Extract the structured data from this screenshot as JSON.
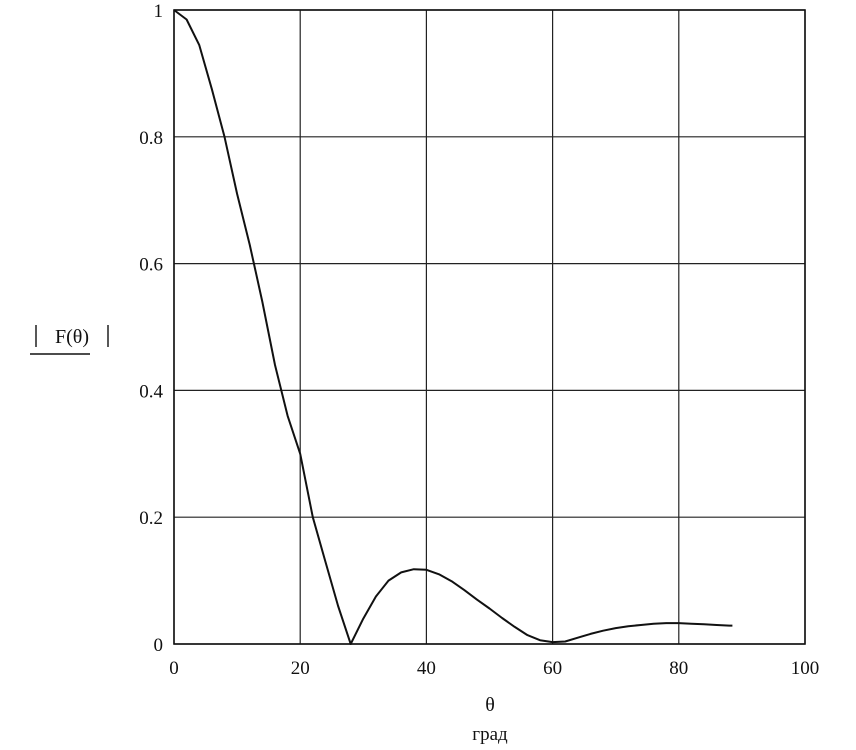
{
  "chart_data": {
    "type": "line",
    "title": "",
    "xlabel": "θ",
    "xunit": "град",
    "ylabel": "F(θ)",
    "xlim": [
      0,
      100
    ],
    "ylim": [
      0,
      1
    ],
    "grid": true,
    "x_ticks": [
      0,
      20,
      40,
      60,
      80,
      100
    ],
    "y_ticks": [
      0,
      0.2,
      0.4,
      0.6,
      0.8,
      1
    ],
    "x_tick_labels": [
      "0",
      "20",
      "40",
      "60",
      "80",
      "100"
    ],
    "y_tick_labels": [
      "0",
      "0.2",
      "0.4",
      "0.6",
      "0.8",
      "1"
    ],
    "series": [
      {
        "x": [
          0,
          2,
          4,
          6,
          8,
          10,
          12,
          14,
          16,
          18,
          20,
          22,
          24,
          26,
          28,
          30,
          32,
          34,
          36,
          38,
          40,
          42,
          44,
          46,
          48,
          50,
          52,
          54,
          56,
          58,
          60,
          62,
          64,
          66,
          68,
          70,
          72,
          74,
          76,
          78,
          80,
          82,
          84,
          86,
          88,
          88.5
        ],
        "y": [
          1.0,
          0.985,
          0.945,
          0.875,
          0.8,
          0.71,
          0.63,
          0.54,
          0.44,
          0.36,
          0.3,
          0.2,
          0.13,
          0.06,
          0.0,
          0.04,
          0.075,
          0.1,
          0.113,
          0.118,
          0.117,
          0.11,
          0.099,
          0.085,
          0.07,
          0.056,
          0.041,
          0.027,
          0.014,
          0.006,
          0.003,
          0.004,
          0.01,
          0.016,
          0.021,
          0.025,
          0.028,
          0.03,
          0.032,
          0.033,
          0.033,
          0.032,
          0.031,
          0.03,
          0.029,
          0.029
        ]
      }
    ]
  }
}
